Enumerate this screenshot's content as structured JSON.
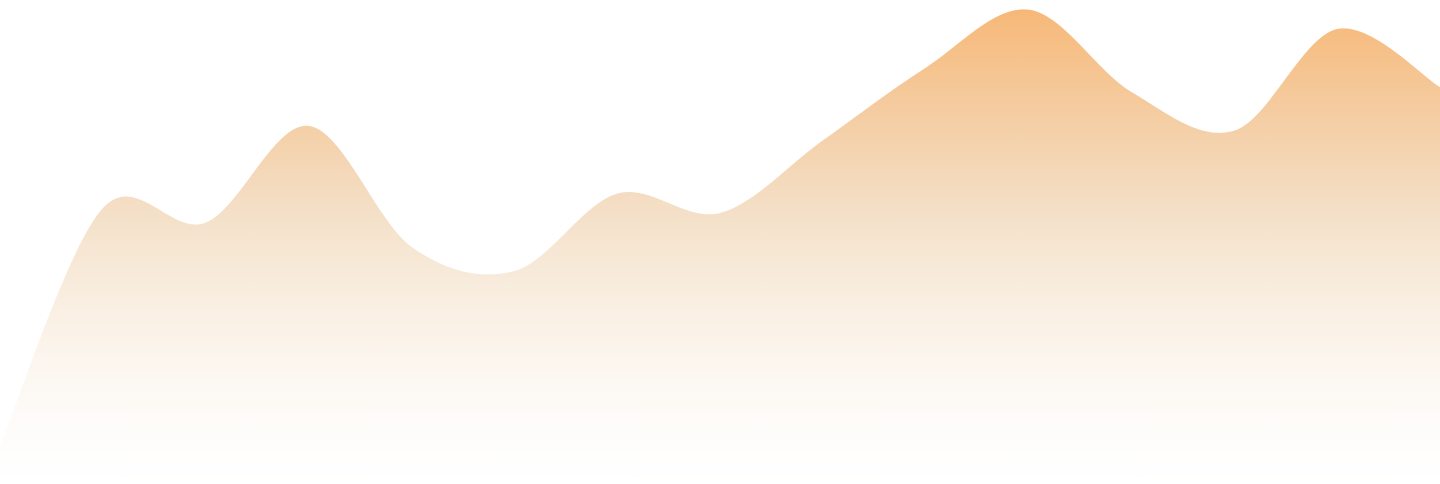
{
  "chart_data": {
    "type": "area",
    "title": "",
    "xlabel": "",
    "ylabel": "",
    "x": [
      0,
      1,
      2,
      3,
      4,
      5,
      6,
      7,
      8,
      9,
      10,
      11,
      12,
      13,
      14
    ],
    "series": [
      {
        "values": [
          8,
          57,
          54,
          74,
          49,
          44,
          60,
          56,
          71,
          86,
          98,
          81,
          73,
          94,
          82
        ]
      }
    ],
    "xlim": [
      0,
      14
    ],
    "ylim": [
      0,
      100
    ],
    "grid": false,
    "legend": "none",
    "colors": {
      "fill_top": "#f6b878",
      "fill_mid": "#f3ddc3",
      "fill_bottom": "#ffffff"
    }
  }
}
